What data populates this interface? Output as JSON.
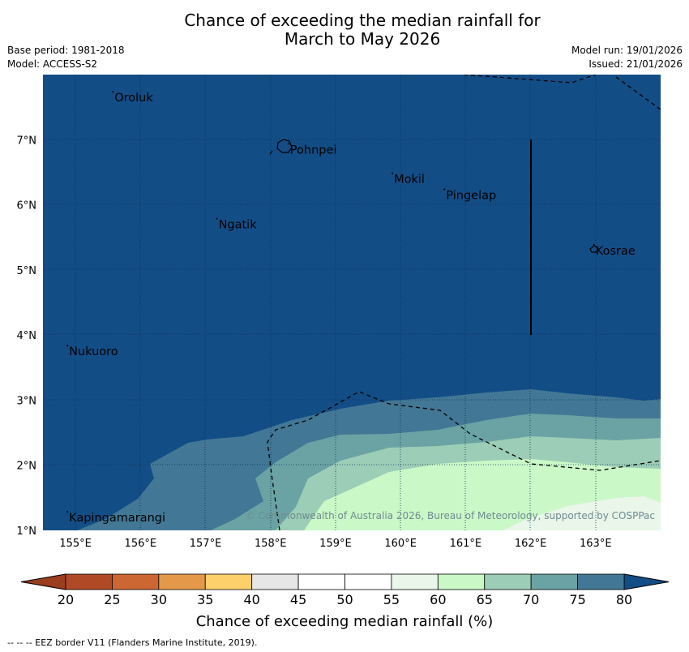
{
  "title_line1": "Chance of exceeding the median rainfall for",
  "title_line2": "March to May 2026",
  "meta": {
    "base_period": "Base period: 1981-2018",
    "model": "Model: ACCESS-S2",
    "model_run": "Model run: 19/01/2026",
    "issued": "Issued: 21/01/2026"
  },
  "map": {
    "lon_range": [
      154.5,
      164.0
    ],
    "lat_range": [
      1.0,
      8.0
    ],
    "lon_ticks": [
      "155°E",
      "156°E",
      "157°E",
      "158°E",
      "159°E",
      "160°E",
      "161°E",
      "162°E",
      "163°E"
    ],
    "lat_ticks": [
      "1°N",
      "2°N",
      "3°N",
      "4°N",
      "5°N",
      "6°N",
      "7°N"
    ],
    "places": [
      {
        "name": "Oroluk",
        "lon": 155.6,
        "lat": 7.65
      },
      {
        "name": "Pohnpei",
        "lon": 158.3,
        "lat": 6.85
      },
      {
        "name": "Mokil",
        "lon": 159.9,
        "lat": 6.4
      },
      {
        "name": "Pingelap",
        "lon": 160.7,
        "lat": 6.15
      },
      {
        "name": "Ngatik",
        "lon": 157.2,
        "lat": 5.7
      },
      {
        "name": "Kosrae",
        "lon": 163.0,
        "lat": 5.3
      },
      {
        "name": "Nukuoro",
        "lon": 154.9,
        "lat": 3.75
      },
      {
        "name": "Kapingamarangi",
        "lon": 154.9,
        "lat": 1.2
      }
    ],
    "copyright": "© Commonwealth of Australia 2026, Bureau of Meteorology, supported by COSPPac"
  },
  "colorbar": {
    "label": "Chance of exceeding median rainfall (%)",
    "ticks": [
      "20",
      "25",
      "30",
      "35",
      "40",
      "45",
      "50",
      "55",
      "60",
      "65",
      "70",
      "75",
      "80"
    ],
    "colors": [
      "#b04a26",
      "#cc6632",
      "#e4994a",
      "#fdd06c",
      "#e6e6e6",
      "#ffffff",
      "#ffffff",
      "#e9f6e9",
      "#caf8c7",
      "#9ccdb6",
      "#6ba3a4",
      "#427895"
    ],
    "under_color": "#9a3e1f",
    "over_color": "#134d86"
  },
  "footer": "--  --  -- EEZ border V11 (Flanders Marine Institute, 2019)."
}
